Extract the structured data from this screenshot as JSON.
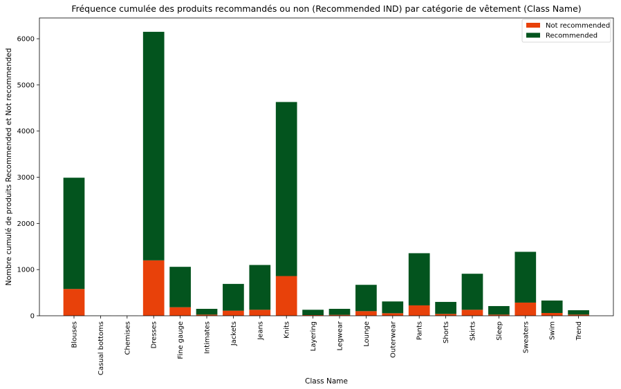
{
  "chart_data": {
    "type": "bar",
    "stacked": true,
    "title": "Fréquence cumulée des produits recommandés ou non (Recommended IND) par catégorie de vêtement (Class Name)",
    "xlabel": "Class Name",
    "ylabel": "Nombre cumulé de produits Recommended et Not recommended",
    "ylim": [
      0,
      6450
    ],
    "yticks": [
      0,
      1000,
      2000,
      3000,
      4000,
      5000,
      6000
    ],
    "legend_position": "top-right",
    "categories": [
      "Blouses",
      "Casual bottoms",
      "Chemises",
      "Dresses",
      "Fine gauge",
      "Intimates",
      "Jackets",
      "Jeans",
      "Knits",
      "Layering",
      "Legwear",
      "Lounge",
      "Outerwear",
      "Pants",
      "Shorts",
      "Skirts",
      "Sleep",
      "Sweaters",
      "Swim",
      "Trend"
    ],
    "series": [
      {
        "name": "Not recommended",
        "color": "#e8410a",
        "values": [
          580,
          0,
          0,
          1200,
          185,
          25,
          110,
          130,
          860,
          15,
          20,
          100,
          55,
          225,
          40,
          130,
          25,
          285,
          60,
          25
        ]
      },
      {
        "name": "Recommended",
        "color": "#03541e",
        "values": [
          2410,
          2,
          1,
          4950,
          875,
          125,
          580,
          970,
          3770,
          115,
          130,
          570,
          255,
          1130,
          260,
          780,
          185,
          1100,
          270,
          95
        ]
      }
    ]
  }
}
